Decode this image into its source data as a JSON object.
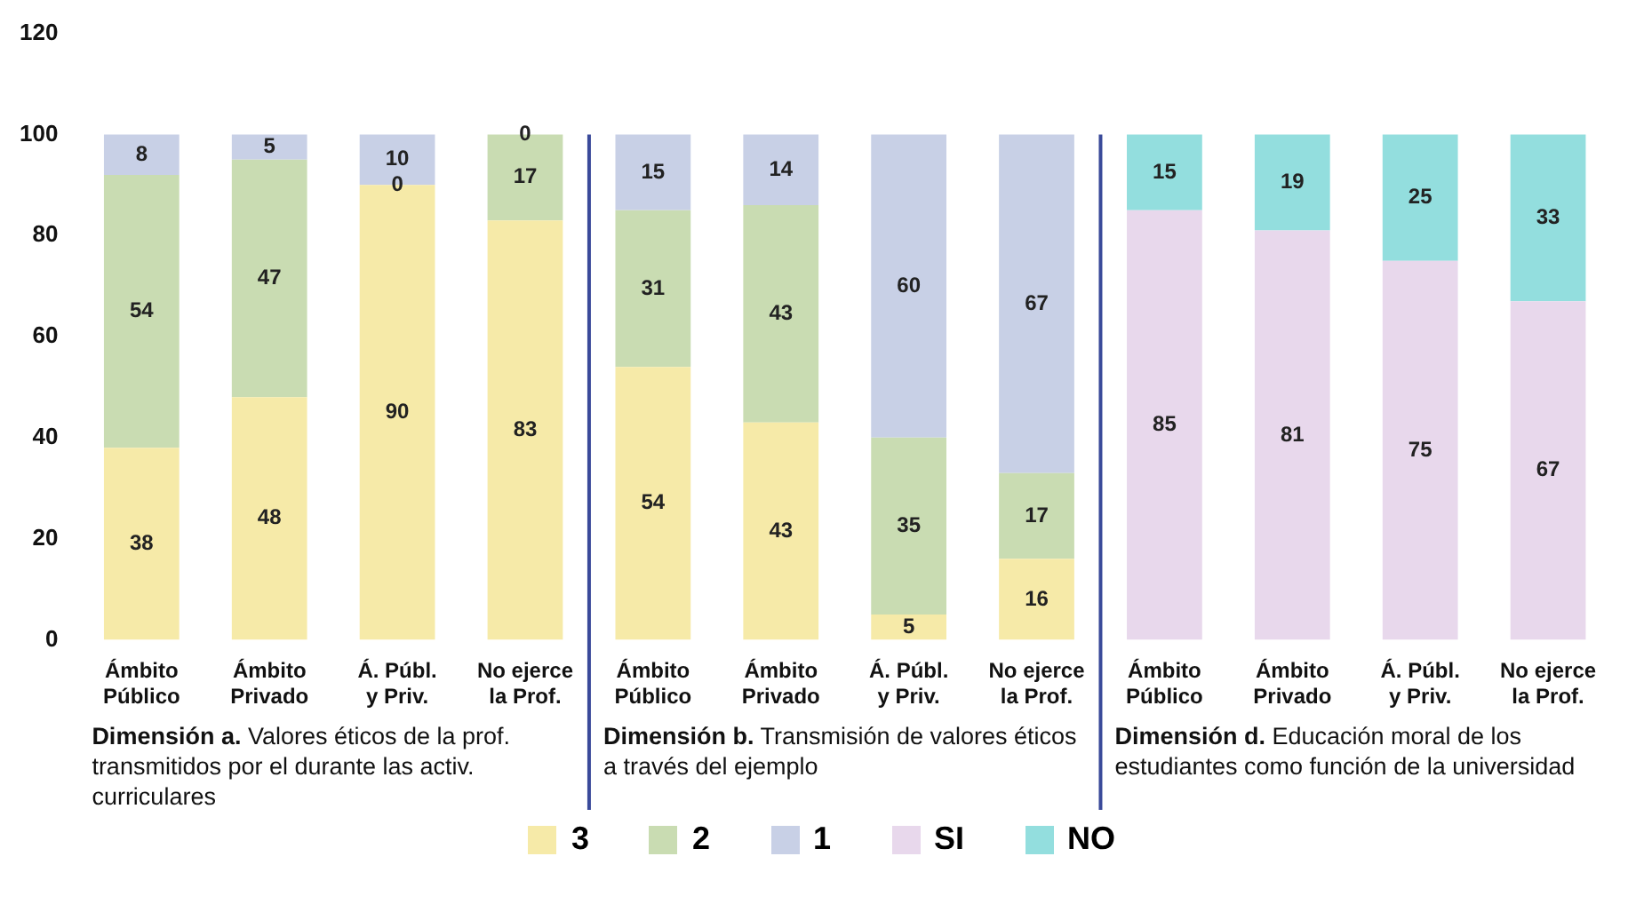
{
  "chart_data": {
    "type": "bar",
    "stacked": true,
    "categories": [
      "Ámbito Público",
      "Ámbito Privado",
      "Á. Públ. y Priv.",
      "No ejerce la Prof.",
      "Ámbito Público",
      "Ámbito Privado",
      "Á. Públ. y Priv.",
      "No ejerce la Prof.",
      "Ámbito Público",
      "Ámbito Privado",
      "Á. Públ. y Priv.",
      "No ejerce la Prof."
    ],
    "series": [
      {
        "name": "3",
        "color": "#f6eaa8",
        "values": [
          38,
          48,
          90,
          83,
          54,
          43,
          5,
          16,
          null,
          null,
          null,
          null
        ]
      },
      {
        "name": "2",
        "color": "#c9dcb2",
        "values": [
          54,
          47,
          0,
          17,
          31,
          43,
          35,
          17,
          null,
          null,
          null,
          null
        ]
      },
      {
        "name": "1",
        "color": "#c8d0e6",
        "values": [
          8,
          5,
          10,
          0,
          15,
          14,
          60,
          67,
          null,
          null,
          null,
          null
        ]
      },
      {
        "name": "SI",
        "color": "#e8d8ec",
        "values": [
          null,
          null,
          null,
          null,
          null,
          null,
          null,
          null,
          85,
          81,
          75,
          67
        ]
      },
      {
        "name": "NO",
        "color": "#93dede",
        "values": [
          null,
          null,
          null,
          null,
          null,
          null,
          null,
          null,
          15,
          19,
          25,
          33
        ]
      }
    ],
    "ylim": [
      0,
      120
    ],
    "yticks": [
      0,
      20,
      40,
      60,
      80,
      100,
      120
    ],
    "data_labels": true,
    "legend": "bottom",
    "annotations": [
      "Dimensión a. Valores éticos de la prof. transmitidos por el durante las activ. curriculares",
      "Dimensión b. Transmisión de valores éticos a través del ejemplo",
      "Dimensión d. Educación moral de los estudiantes como función de la universidad"
    ]
  }
}
